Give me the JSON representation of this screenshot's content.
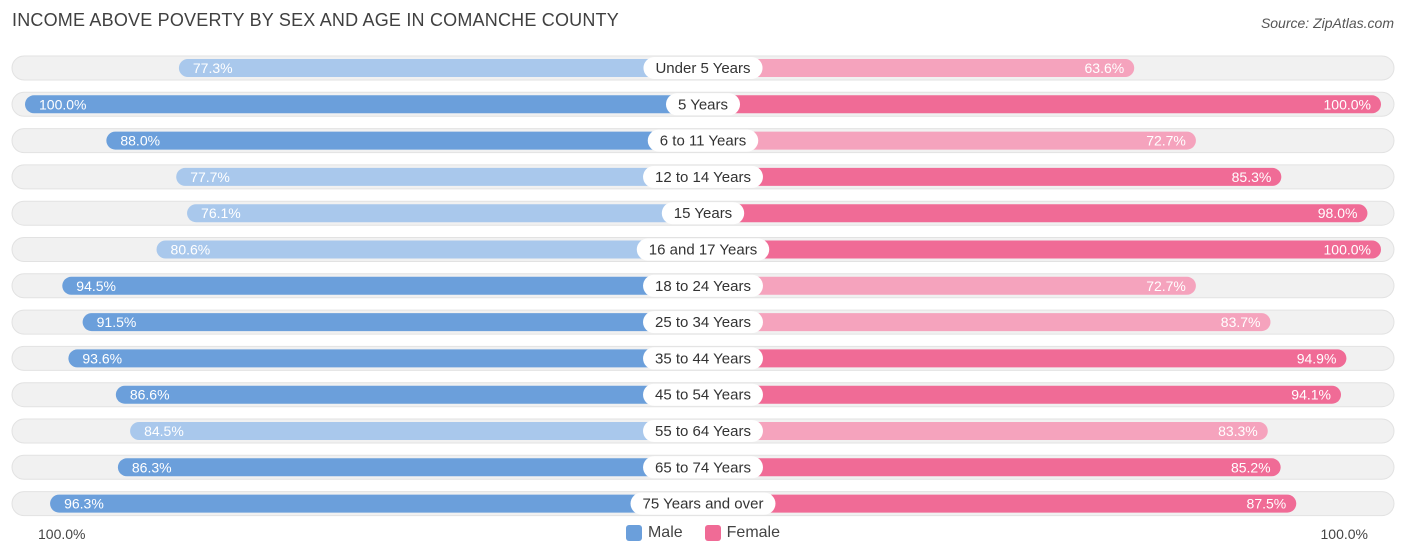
{
  "title": "INCOME ABOVE POVERTY BY SEX AND AGE IN COMANCHE COUNTY",
  "source": "Source: ZipAtlas.com",
  "colors": {
    "male_strong": "#6b9fdb",
    "male_light": "#a9c8ec",
    "female_strong": "#f06b96",
    "female_light": "#f5a3bd",
    "track": "#efefef"
  },
  "axis": {
    "left_label": "100.0%",
    "right_label": "100.0%"
  },
  "legend": {
    "male": "Male",
    "female": "Female"
  },
  "chart_data": {
    "type": "bar",
    "orientation": "horizontal-diverging",
    "title": "INCOME ABOVE POVERTY BY SEX AND AGE IN COMANCHE COUNTY",
    "categories": [
      "Under 5 Years",
      "5 Years",
      "6 to 11 Years",
      "12 to 14 Years",
      "15 Years",
      "16 and 17 Years",
      "18 to 24 Years",
      "25 to 34 Years",
      "35 to 44 Years",
      "45 to 54 Years",
      "55 to 64 Years",
      "65 to 74 Years",
      "75 Years and over"
    ],
    "series": [
      {
        "name": "Male",
        "values": [
          77.3,
          100.0,
          88.0,
          77.7,
          76.1,
          80.6,
          94.5,
          91.5,
          93.6,
          86.6,
          84.5,
          86.3,
          96.3
        ],
        "labels": [
          "77.3%",
          "100.0%",
          "88.0%",
          "77.7%",
          "76.1%",
          "80.6%",
          "94.5%",
          "91.5%",
          "93.6%",
          "86.6%",
          "84.5%",
          "86.3%",
          "96.3%"
        ]
      },
      {
        "name": "Female",
        "values": [
          63.6,
          100.0,
          72.7,
          85.3,
          98.0,
          100.0,
          72.7,
          83.7,
          94.9,
          94.1,
          83.3,
          85.2,
          87.5
        ],
        "labels": [
          "63.6%",
          "100.0%",
          "72.7%",
          "85.3%",
          "98.0%",
          "100.0%",
          "72.7%",
          "83.7%",
          "94.9%",
          "94.1%",
          "83.3%",
          "85.2%",
          "87.5%"
        ]
      }
    ],
    "xlim": [
      0,
      100
    ],
    "legend_position": "bottom-center"
  }
}
